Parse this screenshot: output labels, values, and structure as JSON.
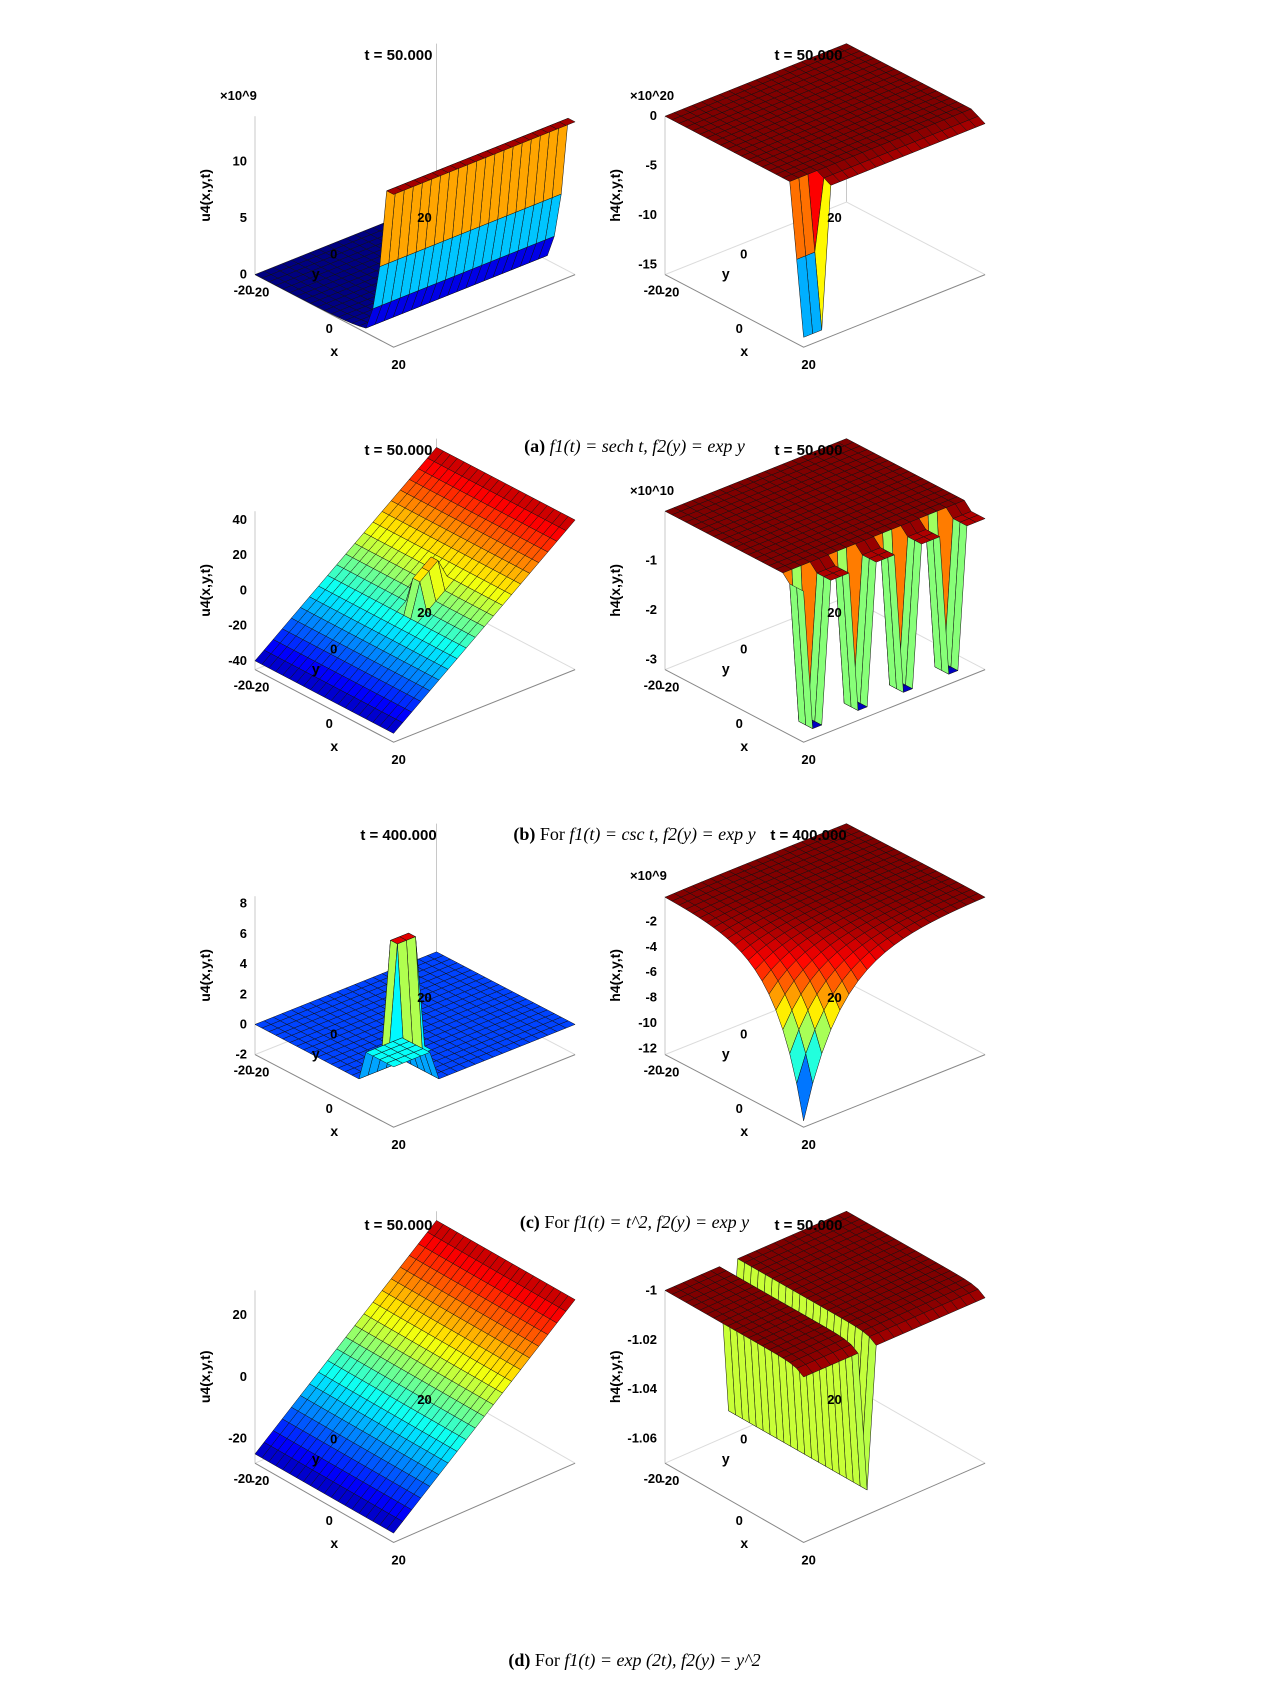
{
  "chart_data": [
    {
      "type": "surface",
      "title": "t = 50.000",
      "zlabel": "u4(x,y,t)",
      "xlabel": "x",
      "ylabel": "y",
      "exponent": "×10^9",
      "zticks": [
        "0",
        "5",
        "10"
      ],
      "xticks": [
        "-20",
        "0",
        "20"
      ],
      "yticks": [
        "-20",
        "0",
        "20"
      ],
      "colormap": "jet",
      "shape": "flat plane with wall rising at large x",
      "zlim": [
        0,
        14
      ],
      "surface_max": 13.5
    },
    {
      "type": "surface",
      "title": "t = 50.000",
      "zlabel": "h4(x,y,t)",
      "xlabel": "x",
      "ylabel": "y",
      "exponent": "×10^20",
      "zticks": [
        "0",
        "-5",
        "-10",
        "-15"
      ],
      "xticks": [
        "-20",
        "0",
        "20"
      ],
      "yticks": [
        "-20",
        "0",
        "20"
      ],
      "colormap": "jet",
      "shape": "flat plane with sharp dip at edge",
      "zlim": [
        -16,
        0
      ]
    },
    {
      "type": "surface",
      "title": "t = 50.000",
      "zlabel": "u4(x,y,t)",
      "xlabel": "x",
      "ylabel": "y",
      "zticks": [
        "-40",
        "-20",
        "0",
        "20",
        "40"
      ],
      "xticks": [
        "-20",
        "0",
        "20"
      ],
      "yticks": [
        "-20",
        "0",
        "20"
      ],
      "colormap": "jet",
      "shape": "tilted plane with spike",
      "zlim": [
        -45,
        45
      ]
    },
    {
      "type": "surface",
      "title": "t = 50.000",
      "zlabel": "h4(x,y,t)",
      "xlabel": "x",
      "ylabel": "y",
      "exponent": "×10^10",
      "zticks": [
        "-1",
        "-2",
        "-3"
      ],
      "xticks": [
        "-20",
        "0",
        "20"
      ],
      "yticks": [
        "-20",
        "0",
        "20"
      ],
      "colormap": "jet",
      "shape": "flat plane with periodic deep troughs",
      "zlim": [
        -3.2,
        0
      ]
    },
    {
      "type": "surface",
      "title": "t = 400.000",
      "zlabel": "u4(x,y,t)",
      "xlabel": "x",
      "ylabel": "y",
      "zticks": [
        "-2",
        "0",
        "2",
        "4",
        "6",
        "8"
      ],
      "xticks": [
        "-20",
        "0",
        "20"
      ],
      "yticks": [
        "-20",
        "0",
        "20"
      ],
      "colormap": "jet",
      "shape": "flat plane with localized spike",
      "zlim": [
        -2,
        8.5
      ]
    },
    {
      "type": "surface",
      "title": "t = 400.000",
      "zlabel": "h4(x,y,t)",
      "xlabel": "x",
      "ylabel": "y",
      "exponent": "×10^9",
      "zticks": [
        "-2",
        "-4",
        "-6",
        "-8",
        "-10",
        "-12"
      ],
      "xticks": [
        "-20",
        "0",
        "20"
      ],
      "yticks": [
        "-20",
        "0",
        "20"
      ],
      "colormap": "jet",
      "shape": "plane with curved drop to deep minimum",
      "zlim": [
        -12.5,
        0
      ]
    },
    {
      "type": "surface",
      "title": "t = 50.000",
      "zlabel": "u4(x,y,t)",
      "xlabel": "x",
      "ylabel": "y",
      "zticks": [
        "-20",
        "0",
        "20"
      ],
      "xticks": [
        "-20",
        "0",
        "20"
      ],
      "yticks": [
        "-20",
        "0",
        "20"
      ],
      "colormap": "jet",
      "shape": "tilted plane",
      "zlim": [
        -28,
        28
      ]
    },
    {
      "type": "surface",
      "title": "t = 50.000",
      "zlabel": "h4(x,y,t)",
      "xlabel": "x",
      "ylabel": "y",
      "zticks": [
        "-1",
        "-1.02",
        "-1.04",
        "-1.06"
      ],
      "xticks": [
        "-20",
        "0",
        "20"
      ],
      "yticks": [
        "-20",
        "0",
        "20"
      ],
      "colormap": "jet",
      "shape": "two plateaus separated by narrow gap with dip",
      "zlim": [
        -1.07,
        -1
      ]
    }
  ],
  "captions": [
    {
      "label": "(a)",
      "prefix": "",
      "text": "f1(t) = sech t, f2(y) = exp y"
    },
    {
      "label": "(b)",
      "prefix": "For",
      "text": "f1(t) = csc t, f2(y) = exp y"
    },
    {
      "label": "(c)",
      "prefix": "For",
      "text": "f1(t) = t^2, f2(y) = exp y"
    },
    {
      "label": "(d)",
      "prefix": "For",
      "text": "f1(t) = exp (2t), f2(y) = y^2"
    }
  ]
}
